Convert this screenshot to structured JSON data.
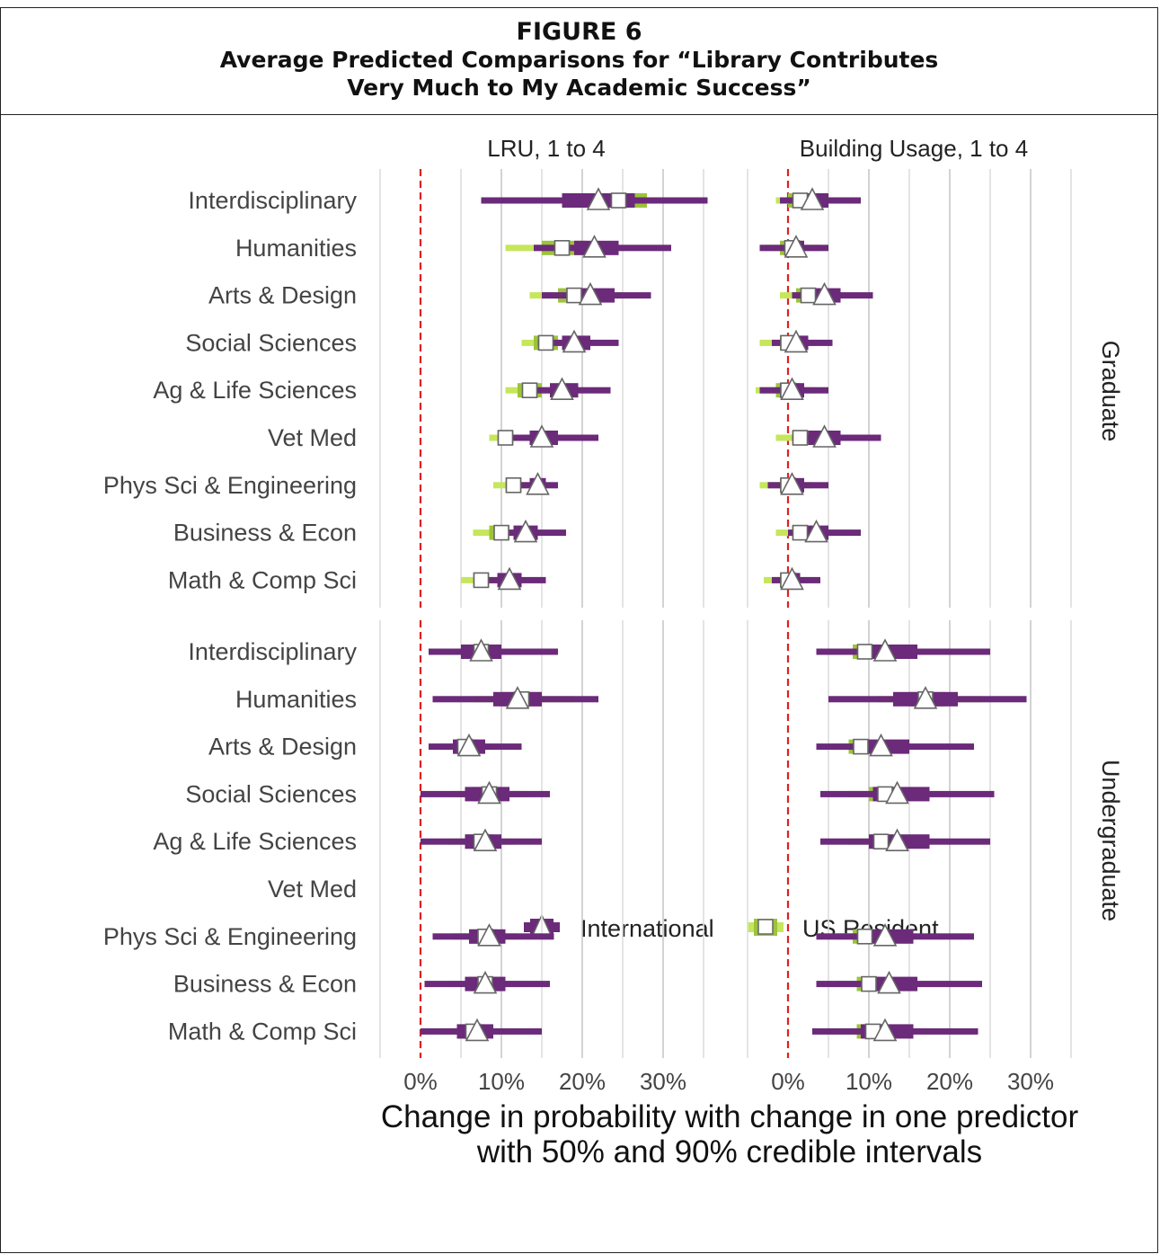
{
  "figure": {
    "label": "FIGURE 6",
    "title_line1": "Average Predicted Comparisons for “Library Contributes",
    "title_line2": "Very Much to My Academic Success”"
  },
  "chart_data": {
    "type": "interval",
    "panels": [
      "LRU, 1 to 4",
      "Building Usage, 1 to 4"
    ],
    "facets": [
      "Graduate",
      "Undergraduate"
    ],
    "categories": [
      "Interdisciplinary",
      "Humanities",
      "Arts & Design",
      "Social Sciences",
      "Ag & Life Sciences",
      "Vet Med",
      "Phys Sci & Engineering",
      "Business & Econ",
      "Math & Comp Sci"
    ],
    "x_ticks": [
      "0%",
      "10%",
      "20%",
      "30%"
    ],
    "xlim": [
      -0.05,
      0.35
    ],
    "xlabel_line1": "Change in probability with change in one predictor",
    "xlabel_line2": "with 50% and 90% credible intervals",
    "reference_line": 0,
    "legend": [
      "International",
      "US Resident"
    ],
    "colors": {
      "International": "#6b2a7a",
      "US Resident": "#9cc43a",
      "US Resident light": "#c6e65b",
      "reference": "#e02020",
      "grid": "#cccccc"
    },
    "series": [
      {
        "name": "International",
        "panel": 0,
        "facet": "Graduate",
        "data": [
          {
            "cat": "Interdisciplinary",
            "mean": 0.22,
            "q05": 0.075,
            "q25": 0.175,
            "q75": 0.265,
            "q95": 0.355
          },
          {
            "cat": "Humanities",
            "mean": 0.215,
            "q05": 0.14,
            "q25": 0.19,
            "q75": 0.245,
            "q95": 0.31
          },
          {
            "cat": "Arts & Design",
            "mean": 0.21,
            "q05": 0.15,
            "q25": 0.185,
            "q75": 0.24,
            "q95": 0.285
          },
          {
            "cat": "Social Sciences",
            "mean": 0.19,
            "q05": 0.145,
            "q25": 0.175,
            "q75": 0.21,
            "q95": 0.245
          },
          {
            "cat": "Ag & Life Sciences",
            "mean": 0.175,
            "q05": 0.135,
            "q25": 0.16,
            "q75": 0.195,
            "q95": 0.235
          },
          {
            "cat": "Vet Med",
            "mean": 0.15,
            "q05": 0.11,
            "q25": 0.135,
            "q75": 0.17,
            "q95": 0.22
          },
          {
            "cat": "Phys Sci & Engineering",
            "mean": 0.145,
            "q05": 0.115,
            "q25": 0.135,
            "q75": 0.155,
            "q95": 0.17
          },
          {
            "cat": "Business & Econ",
            "mean": 0.13,
            "q05": 0.095,
            "q25": 0.115,
            "q75": 0.145,
            "q95": 0.18
          },
          {
            "cat": "Math & Comp Sci",
            "mean": 0.11,
            "q05": 0.08,
            "q25": 0.095,
            "q75": 0.125,
            "q95": 0.155
          }
        ]
      },
      {
        "name": "US Resident",
        "panel": 0,
        "facet": "Graduate",
        "data": [
          {
            "cat": "Interdisciplinary",
            "mean": 0.245,
            "q05": 0.12,
            "q25": 0.21,
            "q75": 0.28,
            "q95": 0.345
          },
          {
            "cat": "Humanities",
            "mean": 0.175,
            "q05": 0.105,
            "q25": 0.15,
            "q75": 0.205,
            "q95": 0.245
          },
          {
            "cat": "Arts & Design",
            "mean": 0.19,
            "q05": 0.135,
            "q25": 0.17,
            "q75": 0.21,
            "q95": 0.25
          },
          {
            "cat": "Social Sciences",
            "mean": 0.155,
            "q05": 0.125,
            "q25": 0.14,
            "q75": 0.17,
            "q95": 0.19
          },
          {
            "cat": "Ag & Life Sciences",
            "mean": 0.135,
            "q05": 0.105,
            "q25": 0.12,
            "q75": 0.15,
            "q95": 0.17
          },
          {
            "cat": "Vet Med",
            "mean": 0.105,
            "q05": 0.085,
            "q25": 0.095,
            "q75": 0.115,
            "q95": 0.13
          },
          {
            "cat": "Phys Sci & Engineering",
            "mean": 0.115,
            "q05": 0.09,
            "q25": 0.105,
            "q75": 0.125,
            "q95": 0.14
          },
          {
            "cat": "Business & Econ",
            "mean": 0.1,
            "q05": 0.065,
            "q25": 0.085,
            "q75": 0.11,
            "q95": 0.13
          },
          {
            "cat": "Math & Comp Sci",
            "mean": 0.075,
            "q05": 0.05,
            "q25": 0.065,
            "q75": 0.085,
            "q95": 0.1
          }
        ]
      },
      {
        "name": "International",
        "panel": 0,
        "facet": "Undergraduate",
        "data": [
          {
            "cat": "Interdisciplinary",
            "mean": 0.075,
            "q05": 0.01,
            "q25": 0.05,
            "q75": 0.1,
            "q95": 0.17
          },
          {
            "cat": "Humanities",
            "mean": 0.12,
            "q05": 0.015,
            "q25": 0.09,
            "q75": 0.15,
            "q95": 0.22
          },
          {
            "cat": "Arts & Design",
            "mean": 0.06,
            "q05": 0.01,
            "q25": 0.04,
            "q75": 0.08,
            "q95": 0.125
          },
          {
            "cat": "Social Sciences",
            "mean": 0.085,
            "q05": 0.0,
            "q25": 0.055,
            "q75": 0.11,
            "q95": 0.16
          },
          {
            "cat": "Ag & Life Sciences",
            "mean": 0.08,
            "q05": 0.0,
            "q25": 0.055,
            "q75": 0.1,
            "q95": 0.15
          },
          {
            "cat": "Phys Sci & Engineering",
            "mean": 0.085,
            "q05": 0.015,
            "q25": 0.06,
            "q75": 0.105,
            "q95": 0.165
          },
          {
            "cat": "Business & Econ",
            "mean": 0.08,
            "q05": 0.005,
            "q25": 0.055,
            "q75": 0.105,
            "q95": 0.16
          },
          {
            "cat": "Math & Comp Sci",
            "mean": 0.07,
            "q05": 0.0,
            "q25": 0.045,
            "q75": 0.09,
            "q95": 0.15
          }
        ]
      },
      {
        "name": "US Resident",
        "panel": 0,
        "facet": "Undergraduate",
        "data": [
          {
            "cat": "Interdisciplinary",
            "mean": 0.075,
            "q05": 0.03,
            "q25": 0.055,
            "q75": 0.095,
            "q95": 0.135
          },
          {
            "cat": "Humanities",
            "mean": 0.125,
            "q05": 0.065,
            "q25": 0.1,
            "q75": 0.15,
            "q95": 0.19
          },
          {
            "cat": "Arts & Design",
            "mean": 0.055,
            "q05": 0.025,
            "q25": 0.04,
            "q75": 0.07,
            "q95": 0.09
          },
          {
            "cat": "Social Sciences",
            "mean": 0.085,
            "q05": 0.04,
            "q25": 0.065,
            "q75": 0.1,
            "q95": 0.13
          },
          {
            "cat": "Ag & Life Sciences",
            "mean": 0.075,
            "q05": 0.035,
            "q25": 0.055,
            "q75": 0.09,
            "q95": 0.115
          },
          {
            "cat": "Phys Sci & Engineering",
            "mean": 0.08,
            "q05": 0.04,
            "q25": 0.06,
            "q75": 0.095,
            "q95": 0.12
          },
          {
            "cat": "Business & Econ",
            "mean": 0.08,
            "q05": 0.035,
            "q25": 0.06,
            "q75": 0.1,
            "q95": 0.125
          },
          {
            "cat": "Math & Comp Sci",
            "mean": 0.065,
            "q05": 0.025,
            "q25": 0.045,
            "q75": 0.08,
            "q95": 0.12
          }
        ]
      },
      {
        "name": "International",
        "panel": 1,
        "facet": "Graduate",
        "data": [
          {
            "cat": "Interdisciplinary",
            "mean": 0.03,
            "q05": -0.01,
            "q25": 0.015,
            "q75": 0.05,
            "q95": 0.09
          },
          {
            "cat": "Humanities",
            "mean": 0.01,
            "q05": -0.035,
            "q25": 0.0,
            "q75": 0.02,
            "q95": 0.05
          },
          {
            "cat": "Arts & Design",
            "mean": 0.045,
            "q05": 0.005,
            "q25": 0.025,
            "q75": 0.065,
            "q95": 0.105
          },
          {
            "cat": "Social Sciences",
            "mean": 0.01,
            "q05": -0.02,
            "q25": 0.0,
            "q75": 0.025,
            "q95": 0.055
          },
          {
            "cat": "Ag & Life Sciences",
            "mean": 0.005,
            "q05": -0.035,
            "q25": -0.01,
            "q75": 0.02,
            "q95": 0.05
          },
          {
            "cat": "Vet Med",
            "mean": 0.045,
            "q05": 0.005,
            "q25": 0.025,
            "q75": 0.065,
            "q95": 0.115
          },
          {
            "cat": "Phys Sci & Engineering",
            "mean": 0.005,
            "q05": -0.025,
            "q25": -0.005,
            "q75": 0.02,
            "q95": 0.05
          },
          {
            "cat": "Business & Econ",
            "mean": 0.035,
            "q05": 0.0,
            "q25": 0.02,
            "q75": 0.05,
            "q95": 0.09
          },
          {
            "cat": "Math & Comp Sci",
            "mean": 0.005,
            "q05": -0.02,
            "q25": -0.005,
            "q75": 0.015,
            "q95": 0.04
          }
        ]
      },
      {
        "name": "US Resident",
        "panel": 1,
        "facet": "Graduate",
        "data": [
          {
            "cat": "Interdisciplinary",
            "mean": 0.015,
            "q05": -0.015,
            "q25": 0.0,
            "q75": 0.03,
            "q95": 0.055
          },
          {
            "cat": "Humanities",
            "mean": 0.005,
            "q05": -0.03,
            "q25": -0.01,
            "q75": 0.02,
            "q95": 0.04
          },
          {
            "cat": "Arts & Design",
            "mean": 0.025,
            "q05": -0.01,
            "q25": 0.01,
            "q75": 0.04,
            "q95": 0.06
          },
          {
            "cat": "Social Sciences",
            "mean": 0.0,
            "q05": -0.035,
            "q25": -0.01,
            "q75": 0.015,
            "q95": 0.035
          },
          {
            "cat": "Ag & Life Sciences",
            "mean": 0.0,
            "q05": -0.04,
            "q25": -0.015,
            "q75": 0.015,
            "q95": 0.035
          },
          {
            "cat": "Vet Med",
            "mean": 0.015,
            "q05": -0.015,
            "q25": 0.005,
            "q75": 0.03,
            "q95": 0.05
          },
          {
            "cat": "Phys Sci & Engineering",
            "mean": 0.0,
            "q05": -0.035,
            "q25": -0.01,
            "q75": 0.01,
            "q95": 0.03
          },
          {
            "cat": "Business & Econ",
            "mean": 0.015,
            "q05": -0.015,
            "q25": 0.005,
            "q75": 0.025,
            "q95": 0.045
          },
          {
            "cat": "Math & Comp Sci",
            "mean": 0.0,
            "q05": -0.03,
            "q25": -0.01,
            "q75": 0.01,
            "q95": 0.025
          }
        ]
      },
      {
        "name": "International",
        "panel": 1,
        "facet": "Undergraduate",
        "data": [
          {
            "cat": "Interdisciplinary",
            "mean": 0.12,
            "q05": 0.035,
            "q25": 0.095,
            "q75": 0.16,
            "q95": 0.25
          },
          {
            "cat": "Humanities",
            "mean": 0.17,
            "q05": 0.05,
            "q25": 0.13,
            "q75": 0.21,
            "q95": 0.295
          },
          {
            "cat": "Arts & Design",
            "mean": 0.115,
            "q05": 0.035,
            "q25": 0.085,
            "q75": 0.15,
            "q95": 0.23
          },
          {
            "cat": "Social Sciences",
            "mean": 0.135,
            "q05": 0.04,
            "q25": 0.105,
            "q75": 0.175,
            "q95": 0.255
          },
          {
            "cat": "Ag & Life Sciences",
            "mean": 0.135,
            "q05": 0.04,
            "q25": 0.1,
            "q75": 0.175,
            "q95": 0.25
          },
          {
            "cat": "Phys Sci & Engineering",
            "mean": 0.12,
            "q05": 0.035,
            "q25": 0.09,
            "q75": 0.155,
            "q95": 0.23
          },
          {
            "cat": "Business & Econ",
            "mean": 0.125,
            "q05": 0.035,
            "q25": 0.095,
            "q75": 0.16,
            "q95": 0.24
          },
          {
            "cat": "Math & Comp Sci",
            "mean": 0.12,
            "q05": 0.03,
            "q25": 0.09,
            "q75": 0.155,
            "q95": 0.235
          }
        ]
      },
      {
        "name": "US Resident",
        "panel": 1,
        "facet": "Undergraduate",
        "data": [
          {
            "cat": "Interdisciplinary",
            "mean": 0.095,
            "q05": 0.055,
            "q25": 0.08,
            "q75": 0.11,
            "q95": 0.14
          },
          {
            "cat": "Humanities",
            "mean": 0.17,
            "q05": 0.11,
            "q25": 0.15,
            "q75": 0.195,
            "q95": 0.24
          },
          {
            "cat": "Arts & Design",
            "mean": 0.09,
            "q05": 0.055,
            "q25": 0.075,
            "q75": 0.105,
            "q95": 0.135
          },
          {
            "cat": "Social Sciences",
            "mean": 0.12,
            "q05": 0.075,
            "q25": 0.1,
            "q75": 0.135,
            "q95": 0.165
          },
          {
            "cat": "Ag & Life Sciences",
            "mean": 0.115,
            "q05": 0.075,
            "q25": 0.1,
            "q75": 0.13,
            "q95": 0.16
          },
          {
            "cat": "Phys Sci & Engineering",
            "mean": 0.095,
            "q05": 0.06,
            "q25": 0.08,
            "q75": 0.11,
            "q95": 0.14
          },
          {
            "cat": "Business & Econ",
            "mean": 0.1,
            "q05": 0.06,
            "q25": 0.085,
            "q75": 0.115,
            "q95": 0.145
          },
          {
            "cat": "Math & Comp Sci",
            "mean": 0.105,
            "q05": 0.06,
            "q25": 0.085,
            "q75": 0.12,
            "q95": 0.15
          }
        ]
      }
    ]
  }
}
